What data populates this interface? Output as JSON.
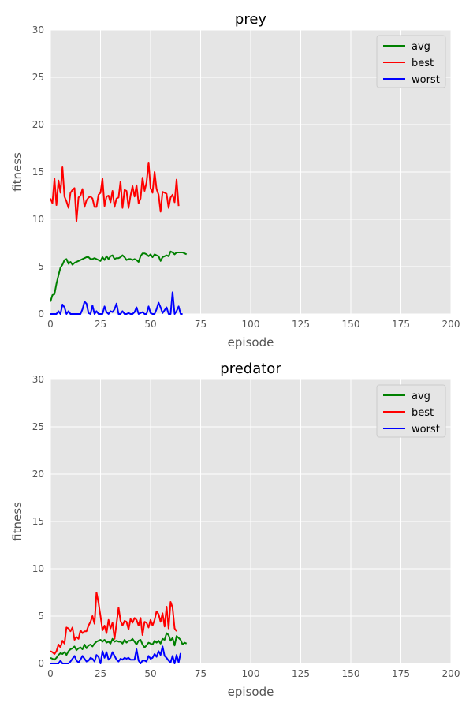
{
  "chart_data": [
    {
      "type": "line",
      "title": "prey",
      "xlabel": "episode",
      "ylabel": "fitness",
      "xlim": [
        0,
        200
      ],
      "ylim": [
        0,
        30
      ],
      "xticks": [
        0,
        25,
        50,
        75,
        100,
        125,
        150,
        175,
        200
      ],
      "yticks": [
        0,
        5,
        10,
        15,
        20,
        25,
        30
      ],
      "grid": true,
      "legend": "top-right",
      "series": [
        {
          "name": "avg",
          "color": "#008000",
          "values": [
            1.3,
            2.0,
            2.1,
            3.2,
            4.1,
            4.9,
            5.2,
            5.7,
            5.8,
            5.3,
            5.5,
            5.2,
            5.4,
            5.5,
            5.6,
            5.7,
            5.8,
            5.9,
            6.0,
            6.0,
            5.8,
            5.8,
            5.9,
            5.8,
            5.7,
            5.6,
            6.0,
            5.7,
            6.1,
            5.8,
            6.1,
            6.2,
            5.8,
            5.9,
            5.9,
            6.0,
            6.2,
            6.0,
            5.7,
            5.8,
            5.8,
            5.7,
            5.8,
            5.7,
            5.5,
            6.1,
            6.4,
            6.4,
            6.3,
            6.1,
            6.3,
            6.0,
            6.3,
            6.2,
            6.1,
            5.6,
            6.0,
            6.1,
            6.2,
            6.1,
            6.6,
            6.5,
            6.3,
            6.5,
            6.5,
            6.5,
            6.5,
            6.4,
            6.3
          ]
        },
        {
          "name": "best",
          "color": "#ff0000",
          "values": [
            12.2,
            11.7,
            14.3,
            11.5,
            14.1,
            12.8,
            15.5,
            12.4,
            11.9,
            11.2,
            12.8,
            13.1,
            13.3,
            9.8,
            12.3,
            12.5,
            13.2,
            11.3,
            12.0,
            12.3,
            12.4,
            12.2,
            11.3,
            11.3,
            12.6,
            12.8,
            14.3,
            11.4,
            12.4,
            12.5,
            11.8,
            13.0,
            11.3,
            12.2,
            12.3,
            14.0,
            11.2,
            13.1,
            13.0,
            11.2,
            12.5,
            13.5,
            12.4,
            13.6,
            11.7,
            12.2,
            14.4,
            13.0,
            13.9,
            16.0,
            13.3,
            12.8,
            15.0,
            13.2,
            12.6,
            10.8,
            12.9,
            12.8,
            12.7,
            11.2,
            12.3,
            12.6,
            11.8,
            14.2,
            11.4
          ]
        },
        {
          "name": "worst",
          "color": "#0000ff",
          "values": [
            0,
            0,
            0,
            0,
            0.3,
            0,
            1.0,
            0.7,
            0,
            0.3,
            0,
            0,
            0,
            0,
            0,
            0,
            0.5,
            1.3,
            1.1,
            0.1,
            0,
            0.9,
            0,
            0.3,
            0,
            0,
            0,
            0.8,
            0.2,
            0,
            0.3,
            0.2,
            0.5,
            1.1,
            0,
            0,
            0.3,
            0,
            0,
            0.1,
            0,
            0,
            0.2,
            0.7,
            0,
            0.1,
            0.2,
            0,
            0,
            0.8,
            0.1,
            0,
            0,
            0.5,
            1.2,
            0.7,
            0.1,
            0.4,
            0.7,
            0,
            0,
            2.3,
            0,
            0.3,
            0.8,
            0,
            0
          ]
        }
      ]
    },
    {
      "type": "line",
      "title": "predator",
      "xlabel": "episode",
      "ylabel": "fitness",
      "xlim": [
        0,
        200
      ],
      "ylim": [
        0,
        30
      ],
      "xticks": [
        0,
        25,
        50,
        75,
        100,
        125,
        150,
        175,
        200
      ],
      "yticks": [
        0,
        5,
        10,
        15,
        20,
        25,
        30
      ],
      "grid": true,
      "legend": "top-right",
      "series": [
        {
          "name": "avg",
          "color": "#008000",
          "values": [
            0.6,
            0.5,
            0.4,
            0.6,
            0.9,
            1.1,
            1.0,
            1.2,
            0.9,
            1.3,
            1.5,
            1.6,
            1.8,
            1.4,
            1.6,
            1.7,
            1.5,
            2.0,
            1.6,
            1.9,
            2.0,
            1.8,
            2.1,
            2.3,
            2.4,
            2.5,
            2.3,
            2.5,
            2.2,
            2.3,
            2.1,
            2.6,
            2.3,
            2.4,
            2.3,
            2.3,
            2.1,
            2.5,
            2.2,
            2.4,
            2.4,
            2.6,
            2.3,
            2.0,
            2.4,
            2.5,
            2.0,
            1.7,
            1.9,
            2.2,
            2.1,
            2.0,
            2.4,
            2.2,
            2.4,
            2.1,
            2.6,
            2.5,
            3.2,
            3.0,
            2.4,
            2.7,
            1.9,
            2.9,
            2.7,
            2.5,
            2.0,
            2.2,
            2.1
          ]
        },
        {
          "name": "best",
          "color": "#ff0000",
          "values": [
            1.3,
            1.2,
            1.0,
            1.3,
            2.0,
            1.7,
            2.4,
            2.1,
            3.8,
            3.7,
            3.4,
            3.8,
            2.5,
            2.8,
            2.6,
            3.5,
            3.2,
            3.4,
            3.4,
            4.0,
            4.4,
            5.0,
            4.2,
            7.5,
            6.4,
            5.0,
            3.5,
            4.0,
            3.2,
            4.6,
            3.7,
            4.3,
            2.6,
            4.2,
            5.9,
            4.5,
            4.0,
            4.5,
            4.4,
            3.6,
            4.7,
            4.3,
            4.8,
            4.6,
            4.0,
            4.8,
            3.0,
            4.4,
            4.3,
            3.8,
            4.6,
            4.0,
            4.6,
            5.5,
            5.2,
            4.4,
            5.3,
            3.9,
            6.0,
            3.7,
            6.5,
            5.9,
            3.7,
            3.4
          ]
        },
        {
          "name": "worst",
          "color": "#0000ff",
          "values": [
            0,
            0,
            0,
            0,
            0,
            0.3,
            0,
            0,
            0,
            0,
            0.2,
            0.5,
            0.8,
            0.3,
            0.1,
            0.4,
            0.8,
            0.5,
            0.2,
            0.3,
            0.6,
            0.5,
            0.2,
            0.9,
            0.7,
            0,
            1.3,
            0.6,
            1.2,
            0.4,
            0.6,
            1.2,
            0.8,
            0.4,
            0.2,
            0.5,
            0.4,
            0.6,
            0.5,
            0.6,
            0.4,
            0.4,
            0.4,
            1.5,
            0.3,
            0,
            0.3,
            0.3,
            0.2,
            0.8,
            0.5,
            0.6,
            1.0,
            0.7,
            1.3,
            0.9,
            1.8,
            0.8,
            0.6,
            0.3,
            0.1,
            0.8,
            0,
            0.9,
            0.1,
            1.1
          ]
        }
      ]
    }
  ]
}
